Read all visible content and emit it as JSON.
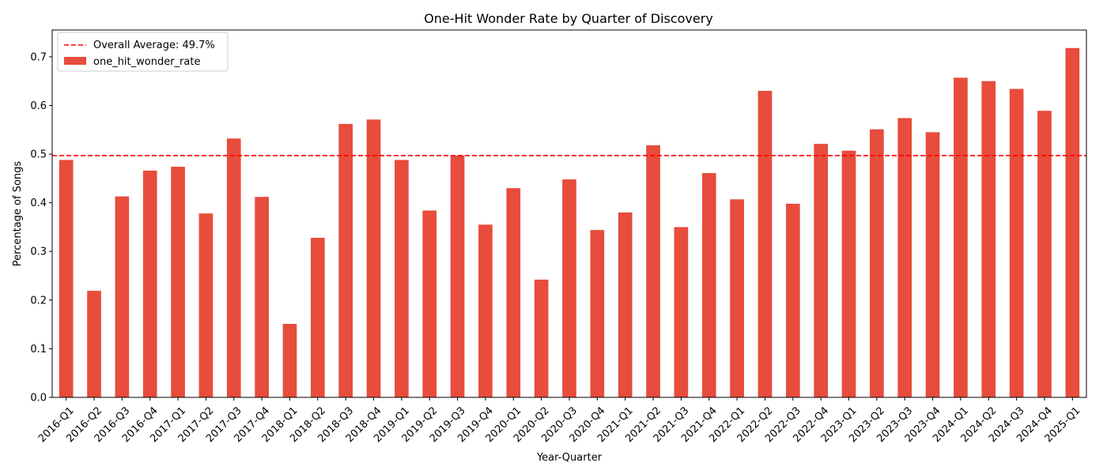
{
  "chart_data": {
    "type": "bar",
    "title": "One-Hit Wonder Rate by Quarter of Discovery",
    "xlabel": "Year-Quarter",
    "ylabel": "Percentage of Songs",
    "ylim": [
      0,
      0.755
    ],
    "yticks": [
      0.0,
      0.1,
      0.2,
      0.3,
      0.4,
      0.5,
      0.6,
      0.7
    ],
    "ytick_labels": [
      "0.0",
      "0.1",
      "0.2",
      "0.3",
      "0.4",
      "0.5",
      "0.6",
      "0.7"
    ],
    "bar_color": "#e74c3c",
    "reference_line": {
      "value": 0.497,
      "label": "Overall Average: 49.7%",
      "color": "#ff0000",
      "style": "dashed"
    },
    "legend": {
      "position": "top-left",
      "entries": [
        "Overall Average: 49.7%",
        "one_hit_wonder_rate"
      ]
    },
    "series": [
      {
        "name": "one_hit_wonder_rate",
        "values": [
          0.488,
          0.219,
          0.413,
          0.466,
          0.474,
          0.378,
          0.532,
          0.412,
          0.151,
          0.328,
          0.562,
          0.571,
          0.488,
          0.384,
          0.497,
          0.355,
          0.43,
          0.242,
          0.448,
          0.344,
          0.38,
          0.518,
          0.35,
          0.461,
          0.407,
          0.63,
          0.398,
          0.521,
          0.507,
          0.551,
          0.574,
          0.545,
          0.657,
          0.65,
          0.634,
          0.589,
          0.718
        ]
      }
    ],
    "categories": [
      "2016-Q1",
      "2016-Q2",
      "2016-Q3",
      "2016-Q4",
      "2017-Q1",
      "2017-Q2",
      "2017-Q3",
      "2017-Q4",
      "2018-Q1",
      "2018-Q2",
      "2018-Q3",
      "2018-Q4",
      "2019-Q1",
      "2019-Q2",
      "2019-Q3",
      "2019-Q4",
      "2020-Q1",
      "2020-Q2",
      "2020-Q3",
      "2020-Q4",
      "2021-Q1",
      "2021-Q2",
      "2021-Q3",
      "2021-Q4",
      "2022-Q1",
      "2022-Q2",
      "2022-Q3",
      "2022-Q4",
      "2023-Q1",
      "2023-Q2",
      "2023-Q3",
      "2023-Q4",
      "2024-Q1",
      "2024-Q2",
      "2024-Q3",
      "2024-Q4",
      "2025-Q1"
    ]
  }
}
